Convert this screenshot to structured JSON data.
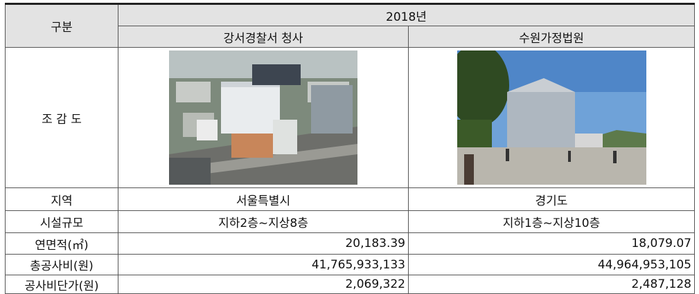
{
  "header": {
    "label": "구분",
    "year": "2018년",
    "projects": [
      "강서경찰서 청사",
      "수원가정법원"
    ]
  },
  "image_row": {
    "label": "조 감 도"
  },
  "rows": [
    {
      "label": "지역",
      "values": [
        "서울특별시",
        "경기도"
      ]
    },
    {
      "label": "시설규모",
      "values": [
        "지하2층~지상8층",
        "지하1층~지상10층"
      ]
    },
    {
      "label": "연면적(㎡)",
      "values": [
        "20,183.39",
        "18,079.07"
      ]
    },
    {
      "label": "총공사비(원)",
      "values": [
        "41,765,933,133",
        "44,964,953,105"
      ]
    },
    {
      "label": "공사비단가(원)",
      "values": [
        "2,069,322",
        "2,487,128"
      ]
    }
  ]
}
